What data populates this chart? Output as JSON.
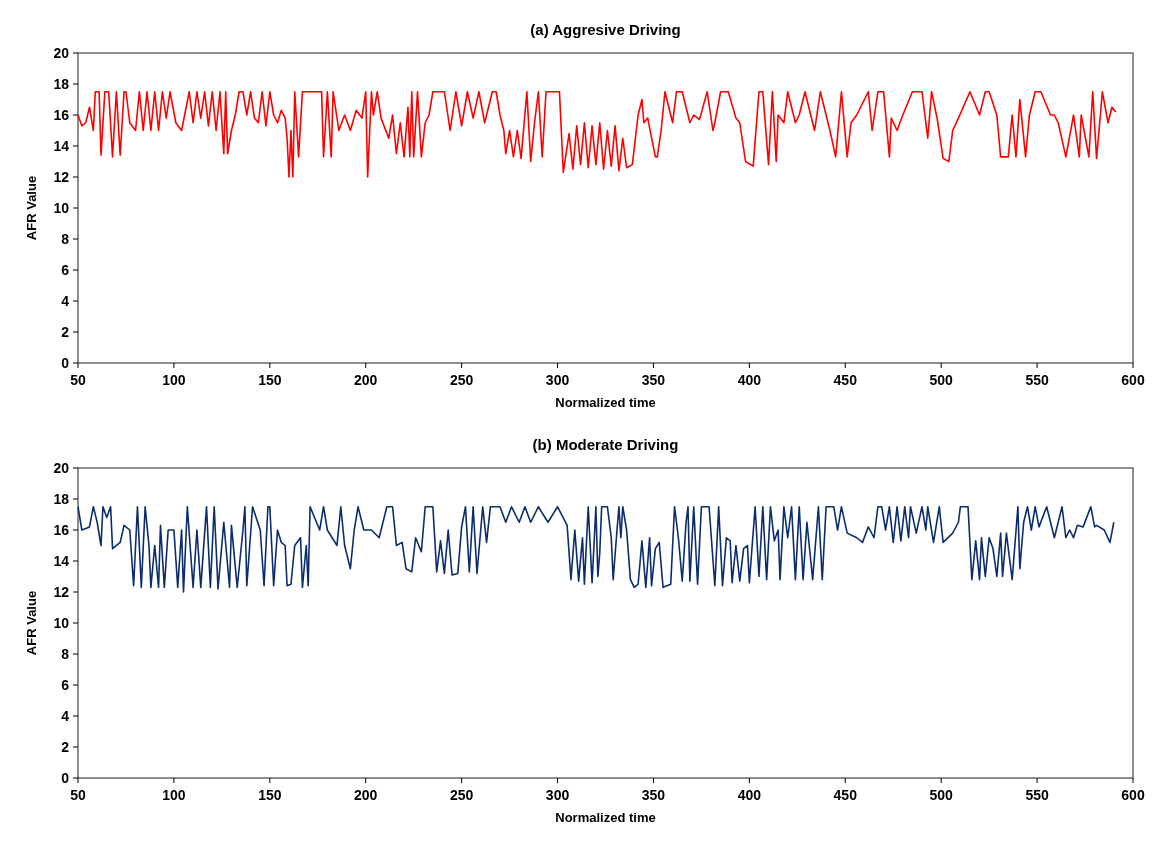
{
  "chart_data": [
    {
      "type": "line",
      "title": "(a) Aggresive Driving",
      "xlabel": "Normalized time",
      "ylabel": "AFR Value",
      "xlim": [
        50,
        600
      ],
      "xticks": [
        50,
        100,
        150,
        200,
        250,
        300,
        350,
        400,
        450,
        500,
        550,
        600
      ],
      "ylim": [
        0,
        20
      ],
      "yticks": [
        0,
        2,
        4,
        6,
        8,
        10,
        12,
        14,
        16,
        18,
        20
      ],
      "grid": false,
      "series": [
        {
          "color": "#ff0000",
          "x": [
            50,
            52,
            54,
            56,
            58,
            59,
            61,
            62,
            64,
            66,
            68,
            70,
            72,
            74,
            75,
            77,
            80,
            82,
            84,
            86,
            88,
            90,
            92,
            94,
            96,
            98,
            101,
            104,
            108,
            110,
            112,
            114,
            116,
            118,
            120,
            122,
            124,
            126,
            127,
            128,
            130,
            132,
            134,
            136,
            138,
            140,
            142,
            144,
            146,
            148,
            150,
            152,
            154,
            156,
            158,
            159,
            160,
            161,
            162,
            163,
            165,
            167,
            171,
            177,
            178,
            180,
            182,
            183,
            186,
            189,
            192,
            195,
            198,
            200,
            201,
            203,
            204,
            206,
            208,
            212,
            214,
            216,
            218,
            220,
            222,
            223,
            224,
            225,
            227,
            229,
            231,
            233,
            235,
            241,
            244,
            247,
            250,
            253,
            256,
            259,
            262,
            266,
            268,
            270,
            272,
            273,
            275,
            277,
            279,
            281,
            284,
            286,
            288,
            290,
            292,
            294,
            301,
            303,
            306,
            308,
            310,
            312,
            314,
            316,
            318,
            320,
            322,
            324,
            326,
            328,
            330,
            332,
            334,
            336,
            339,
            342,
            344,
            345,
            347,
            351,
            352,
            354,
            356,
            360,
            362,
            365,
            369,
            371,
            374,
            378,
            381,
            382,
            385,
            389,
            393,
            395,
            398,
            402,
            405,
            407,
            410,
            412,
            414,
            415,
            418,
            420,
            424,
            426,
            429,
            434,
            437,
            442,
            445,
            448,
            451,
            453,
            456,
            462,
            464,
            467,
            470,
            473,
            474,
            477,
            480,
            485,
            490,
            493,
            495,
            498,
            501,
            504,
            506,
            509,
            515,
            520,
            523,
            525,
            529,
            531,
            535,
            537,
            539,
            541,
            544,
            546,
            549,
            552,
            557,
            559,
            561,
            565,
            569,
            572,
            573,
            577,
            579,
            581,
            583,
            584,
            587,
            589,
            591
          ],
          "values": [
            16,
            15.3,
            15.5,
            16.5,
            15,
            17.5,
            17.5,
            13.4,
            17.5,
            17.5,
            13.3,
            17.5,
            13.4,
            17.5,
            17.5,
            15.5,
            15,
            17.5,
            15,
            17.5,
            15,
            17.5,
            15,
            17.5,
            15.8,
            17.5,
            15.5,
            15,
            17.5,
            15.5,
            17.5,
            15.8,
            17.5,
            15.3,
            17.5,
            15,
            17.5,
            13.5,
            17.5,
            13.5,
            15,
            16,
            17.5,
            17.5,
            16,
            17.5,
            15.8,
            15.5,
            17.5,
            15.3,
            17.5,
            16,
            15.5,
            16.3,
            15.8,
            14.5,
            12,
            15,
            12,
            17.5,
            13.3,
            17.5,
            17.5,
            17.5,
            13.3,
            17.5,
            13.3,
            17.5,
            15,
            16,
            15,
            16.3,
            15.8,
            17.5,
            12,
            17.5,
            16,
            17.5,
            15.8,
            14.5,
            16,
            13.5,
            15.5,
            13.3,
            16.5,
            13.3,
            17.5,
            13.3,
            17.5,
            13.3,
            15.5,
            16,
            17.5,
            17.5,
            15,
            17.5,
            15.3,
            17.5,
            15.8,
            17.5,
            15.5,
            17.5,
            17.5,
            16,
            15,
            13.5,
            15,
            13.3,
            15,
            13.2,
            17.5,
            13,
            15.5,
            17.5,
            13.3,
            17.5,
            17.5,
            12.3,
            14.8,
            12.5,
            15.3,
            12.8,
            15.5,
            12.6,
            15.3,
            12.8,
            15.5,
            12.5,
            15,
            12.7,
            15.3,
            12.4,
            14.5,
            12.6,
            12.8,
            16,
            17,
            15.5,
            15.8,
            13.3,
            13.3,
            15,
            17.5,
            15.5,
            17.5,
            17.5,
            15.5,
            16,
            15.7,
            17.5,
            15,
            15.5,
            17.5,
            17.5,
            15.8,
            15.5,
            13,
            12.7,
            17.5,
            17.5,
            12.8,
            17.5,
            13,
            16,
            15.5,
            17.5,
            15.5,
            16,
            17.5,
            15,
            17.5,
            15,
            13.3,
            17.5,
            13.3,
            15.5,
            16,
            17.5,
            15,
            17.5,
            17.5,
            13.3,
            15.8,
            15,
            16,
            17.5,
            17.5,
            14.5,
            17.5,
            15.7,
            13.2,
            13,
            15,
            15.8,
            17.5,
            16,
            17.5,
            17.5,
            16,
            13.3,
            13.3,
            16,
            13.3,
            17,
            13.3,
            16,
            17.5,
            17.5,
            16,
            16,
            15.5,
            13.3,
            16,
            13.3,
            16,
            13.3,
            17.5,
            13.2,
            16,
            17.5,
            15.5,
            16.5,
            16.2
          ]
        }
      ]
    },
    {
      "type": "line",
      "title": "(b) Moderate Driving",
      "xlabel": "Normalized time",
      "ylabel": "AFR Value",
      "xlim": [
        50,
        600
      ],
      "xticks": [
        50,
        100,
        150,
        200,
        250,
        300,
        350,
        400,
        450,
        500,
        550,
        600
      ],
      "ylim": [
        0,
        20
      ],
      "yticks": [
        0,
        2,
        4,
        6,
        8,
        10,
        12,
        14,
        16,
        18,
        20
      ],
      "grid": false,
      "series": [
        {
          "color": "#0c2d6b",
          "x": [
            50,
            52,
            56,
            58,
            60,
            62,
            63,
            65,
            67,
            68,
            72,
            74,
            77,
            79,
            81,
            83,
            85,
            87,
            88,
            90,
            92,
            93,
            95,
            97,
            100,
            102,
            104,
            105,
            107,
            110,
            112,
            114,
            117,
            119,
            121,
            123,
            126,
            129,
            130,
            133,
            136,
            137,
            138,
            141,
            145,
            147,
            149,
            150,
            152,
            154,
            156,
            158,
            159,
            161,
            163,
            166,
            167,
            169,
            170,
            171,
            176,
            178,
            180,
            185,
            187,
            189,
            192,
            194,
            196,
            199,
            203,
            207,
            211,
            214,
            216,
            219,
            221,
            224,
            226,
            229,
            231,
            235,
            237,
            239,
            241,
            243,
            245,
            248,
            250,
            252,
            254,
            256,
            258,
            261,
            263,
            265,
            270,
            273,
            276,
            280,
            283,
            286,
            290,
            295,
            300,
            305,
            307,
            309,
            311,
            313,
            314,
            316,
            318,
            320,
            321,
            322,
            323,
            326,
            328,
            329,
            331,
            332,
            333,
            334,
            336,
            338,
            340,
            342,
            344,
            346,
            348,
            349,
            351,
            353,
            355,
            359,
            361,
            363,
            365,
            367,
            368,
            369,
            371,
            373,
            375,
            379,
            382,
            384,
            386,
            388,
            390,
            391,
            393,
            395,
            397,
            399,
            400,
            403,
            405,
            407,
            409,
            411,
            413,
            415,
            416,
            418,
            420,
            422,
            424,
            426,
            428,
            430,
            433,
            436,
            438,
            440,
            441,
            444,
            446,
            448,
            451,
            456,
            459,
            462,
            465,
            467,
            469,
            471,
            473,
            475,
            477,
            479,
            481,
            483,
            484,
            487,
            490,
            492,
            493,
            496,
            499,
            501,
            506,
            509,
            510,
            514,
            516,
            518,
            520,
            521,
            523,
            525,
            527,
            529,
            531,
            532,
            534,
            537,
            540,
            541,
            543,
            545,
            547,
            549,
            551,
            555,
            558,
            559,
            563,
            565,
            567,
            569,
            571,
            574,
            578,
            580,
            581,
            585,
            588,
            590
          ],
          "values": [
            17.5,
            16,
            16.2,
            17.5,
            16.5,
            15,
            17.5,
            16.8,
            17.5,
            14.8,
            15.2,
            16.3,
            16,
            12.4,
            17.5,
            12.3,
            17.5,
            15,
            12.3,
            15,
            12.3,
            16.3,
            12.3,
            16,
            16,
            12.3,
            16,
            12,
            17.5,
            12.3,
            16,
            12.3,
            17.5,
            12.3,
            17.5,
            12.2,
            16.5,
            12.3,
            16.3,
            12.3,
            16,
            17.5,
            12.4,
            17.5,
            16,
            12.4,
            17.5,
            17.5,
            12.4,
            16,
            15.2,
            15,
            12.4,
            12.5,
            15,
            15.5,
            12.3,
            15,
            12.4,
            17.5,
            16,
            17.5,
            16,
            15,
            17.5,
            15,
            13.5,
            16,
            17.5,
            16,
            16,
            15.5,
            17.5,
            17.5,
            15,
            15.2,
            13.5,
            13.3,
            15.5,
            14.6,
            17.5,
            17.5,
            13.3,
            15.3,
            13.2,
            16,
            13.1,
            13.2,
            16.2,
            17.5,
            13.3,
            17.5,
            13.2,
            17.5,
            15.2,
            17.5,
            17.5,
            16.5,
            17.5,
            16.5,
            17.5,
            16.5,
            17.5,
            16.5,
            17.5,
            16.3,
            12.8,
            16,
            12.7,
            15.5,
            12.5,
            17.5,
            12.6,
            17.5,
            13,
            14.5,
            17.5,
            17.5,
            15.5,
            12.8,
            16,
            17.5,
            15.5,
            17.5,
            16,
            12.8,
            12.3,
            12.5,
            15.3,
            12.3,
            15.5,
            12.4,
            14.8,
            15.2,
            12.3,
            12.5,
            17.5,
            15.5,
            12.7,
            16.5,
            17.5,
            12.7,
            17.5,
            12.5,
            17.5,
            17.5,
            12.4,
            17.5,
            12.4,
            15.5,
            15.3,
            12.6,
            15,
            12.7,
            14.8,
            15,
            12.6,
            17.5,
            13,
            17.5,
            12.8,
            17.5,
            15.3,
            16,
            12.8,
            17.5,
            15.5,
            17.5,
            12.8,
            17.5,
            12.8,
            16.5,
            12.8,
            17.5,
            12.8,
            17.5,
            17.5,
            17.5,
            16,
            17.5,
            15.8,
            15.5,
            15.2,
            16.2,
            15.5,
            17.5,
            17.5,
            16,
            17.5,
            15.2,
            17.5,
            15.3,
            17.5,
            15.5,
            17.5,
            15.8,
            17.5,
            16,
            17.5,
            15.2,
            17.5,
            15.2,
            15.8,
            16.5,
            17.5,
            17.5,
            12.8,
            15.3,
            12.8,
            15.5,
            13,
            15.5,
            14.8,
            13,
            15.8,
            13,
            15.8,
            12.8,
            17.5,
            13.5,
            16.5,
            17.5,
            16,
            17.5,
            16.2,
            17.5,
            16,
            15.5,
            17.5,
            15.5,
            16,
            15.5,
            16.3,
            16.2,
            17.5,
            16.2,
            16.3,
            16,
            15.2,
            16.5
          ]
        }
      ]
    }
  ]
}
